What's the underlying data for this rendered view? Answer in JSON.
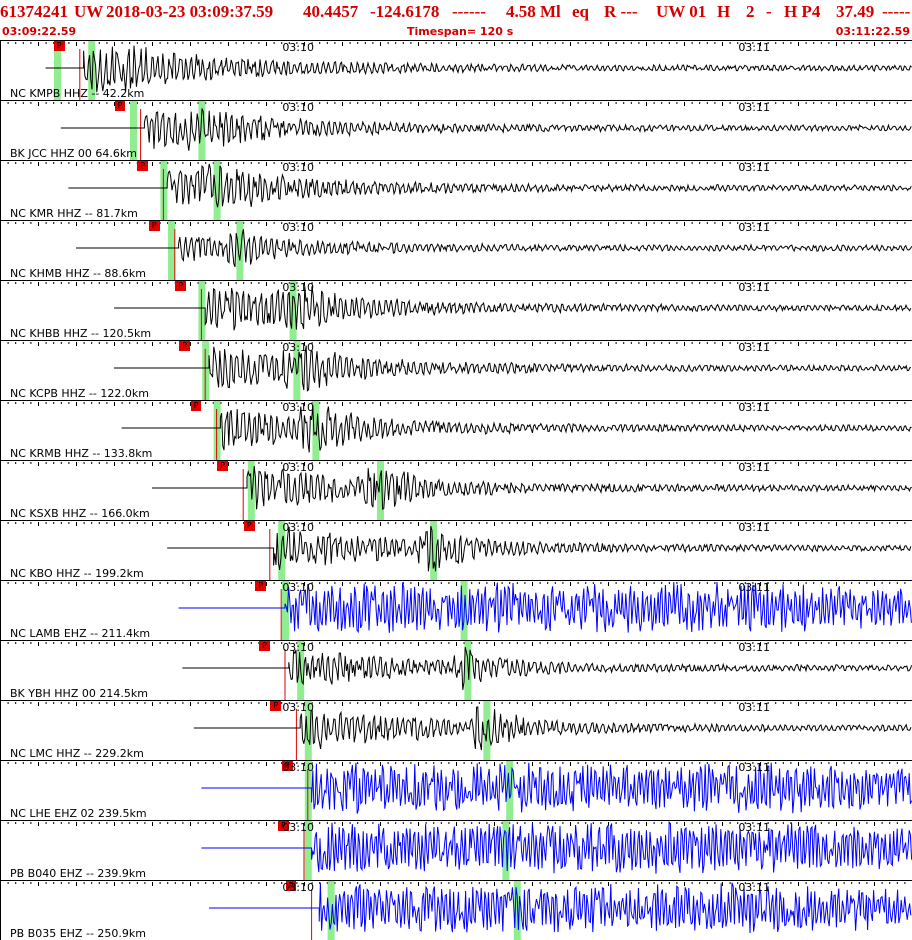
{
  "header": {
    "event_id": "61374241",
    "network": "UW",
    "datetime": "2018-03-23 03:09:37.59",
    "latitude": "40.4457",
    "longitude": "-124.6178",
    "depth_dashes": "------",
    "magnitude": "4.58 Ml",
    "etype": "eq",
    "review_flag": "R ---",
    "source_info": "UW 01",
    "gtype": "H",
    "quality": "2",
    "dash": "-",
    "solution": "H P4",
    "dist_value": "37.49",
    "end_dashes": "-----",
    "start_time": "03:09:22.59",
    "timespan": "Timespan= 120 s",
    "end_time": "03:11:22.59"
  },
  "tick_labels": {
    "first": "03:10",
    "second": "03:11"
  },
  "colors": {
    "header_text": "#d40000",
    "pick": "#e00000",
    "green_marker": "#90ee90",
    "trace_black": "#000000",
    "trace_blue": "#0000ff"
  },
  "channels": [
    {
      "label": "NC KMPB HHZ -- 42.2km",
      "pick": "P",
      "color": "black",
      "pick_time_s": 10.5,
      "green_marks_s": [
        7.5,
        12.0
      ],
      "onset_s": 11.0,
      "amp": 1.0,
      "pre_start_s": 6.0
    },
    {
      "label": "BK JCC HHZ 00 64.6km",
      "pick": "P",
      "color": "black",
      "pick_time_s": 18.5,
      "green_marks_s": [
        17.5,
        26.5
      ],
      "onset_s": 19.0,
      "amp": 0.8,
      "pre_start_s": 8.0
    },
    {
      "label": "NC KMR HHZ -- 81.7km",
      "pick": "P",
      "color": "black",
      "pick_time_s": 21.5,
      "green_marks_s": [
        21.5,
        28.5
      ],
      "onset_s": 22.0,
      "amp": 0.85,
      "pre_start_s": 9.0
    },
    {
      "label": "NC KHMB HHZ -- 88.6km",
      "pick": "P",
      "color": "black",
      "pick_time_s": 23.0,
      "green_marks_s": [
        22.5,
        31.5
      ],
      "onset_s": 23.5,
      "amp": 0.5,
      "pre_start_s": 10.0
    },
    {
      "label": "NC KHBB HHZ -- 120.5km",
      "pick": "P",
      "color": "black",
      "pick_time_s": 26.5,
      "green_marks_s": [
        26.5,
        38.5
      ],
      "onset_s": 27.0,
      "amp": 1.0,
      "pre_start_s": 15.0
    },
    {
      "label": "NC KCPB HHZ -- 122.0km",
      "pick": "P",
      "color": "black",
      "pick_time_s": 27.0,
      "green_marks_s": [
        27.0,
        39.0
      ],
      "onset_s": 27.5,
      "amp": 0.9,
      "pre_start_s": 15.0
    },
    {
      "label": "NC KRMB HHZ -- 133.8km",
      "pick": "P",
      "color": "black",
      "pick_time_s": 28.5,
      "green_marks_s": [
        28.5,
        41.5
      ],
      "onset_s": 29.0,
      "amp": 0.9,
      "pre_start_s": 16.0
    },
    {
      "label": "NC KSXB HHZ -- 166.0km",
      "pick": "P",
      "color": "black",
      "pick_time_s": 32.0,
      "green_marks_s": [
        33.0,
        50.0
      ],
      "onset_s": 32.5,
      "amp": 0.9,
      "pre_start_s": 20.0
    },
    {
      "label": "NC KBO HHZ -- 199.2km",
      "pick": "P",
      "color": "black",
      "pick_time_s": 35.5,
      "green_marks_s": [
        37.0,
        57.0
      ],
      "onset_s": 36.0,
      "amp": 0.9,
      "pre_start_s": 22.0
    },
    {
      "label": "NC LAMB EHZ -- 211.4km",
      "pick": "P",
      "color": "blue",
      "pick_time_s": 37.0,
      "green_marks_s": [
        37.5,
        61.0
      ],
      "onset_s": 37.5,
      "amp": 1.0,
      "pre_start_s": 23.5
    },
    {
      "label": "BK YBH HHZ 00 214.5km",
      "pick": "P",
      "color": "black",
      "pick_time_s": 37.5,
      "green_marks_s": [
        39.5,
        61.5
      ],
      "onset_s": 38.0,
      "amp": 0.8,
      "pre_start_s": 24.0
    },
    {
      "label": "NC LMC HHZ -- 229.2km",
      "pick": "P",
      "color": "black",
      "pick_time_s": 39.0,
      "green_marks_s": [
        40.5,
        64.0
      ],
      "onset_s": 39.5,
      "amp": 0.9,
      "pre_start_s": 25.5
    },
    {
      "label": "NC LHE EHZ 02 239.5km",
      "pick": "P",
      "color": "blue",
      "pick_time_s": 40.5,
      "green_marks_s": [
        40.5,
        67.0
      ],
      "onset_s": 41.0,
      "amp": 1.0,
      "pre_start_s": 26.5
    },
    {
      "label": "PB B040 EHZ -- 239.9km",
      "pick": "P",
      "color": "blue",
      "pick_time_s": 40.0,
      "green_marks_s": [
        40.5,
        66.5
      ],
      "onset_s": 41.0,
      "amp": 0.6,
      "pre_start_s": 26.5
    },
    {
      "label": "PB B035 EHZ -- 250.9km",
      "pick": "P",
      "color": "blue",
      "pick_time_s": 41.0,
      "green_marks_s": [
        43.5,
        68.0
      ],
      "onset_s": 42.0,
      "amp": 0.5,
      "pre_start_s": 27.5
    }
  ]
}
